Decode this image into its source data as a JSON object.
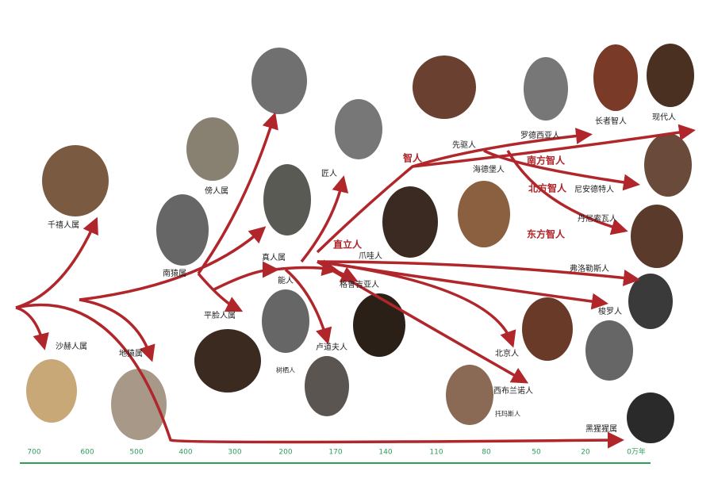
{
  "species": [
    "千禧人属",
    "沙赫人属",
    "地猿属",
    "南猿属",
    "傍人属",
    "平脸人属",
    "真人属",
    "能人",
    "卢道夫人",
    "树栖人",
    "匠人",
    "直立人",
    "爪哇人",
    "格鲁吉亚人",
    "智人",
    "先驱人",
    "海德堡人",
    "罗德西亚人",
    "长者智人",
    "现代人",
    "南方智人",
    "北方智人",
    "尼安德特人",
    "丹尼索瓦人",
    "东方智人",
    "弗洛勒斯人",
    "梭罗人",
    "北京人",
    "西布兰诺人",
    "托玛斯人",
    "黑猩猩属"
  ],
  "timeline": {
    "labels": [
      "700",
      "600",
      "500",
      "400",
      "300",
      "200",
      "170",
      "140",
      "110",
      "80",
      "50",
      "20",
      "0万年"
    ]
  }
}
